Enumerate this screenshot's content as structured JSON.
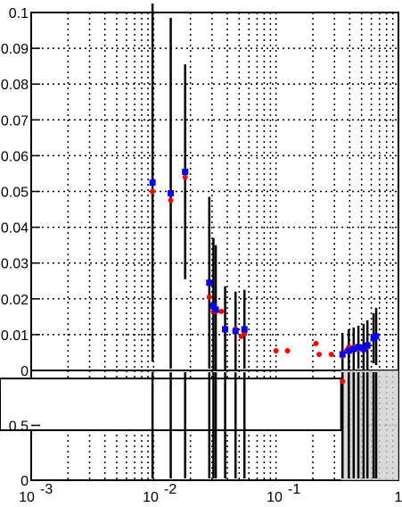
{
  "chart_data": [
    {
      "type": "scatter",
      "x_scale": "log",
      "xlim": [
        0.001,
        1
      ],
      "ylim": [
        0,
        0.1
      ],
      "grid": true,
      "x_tick_labels": [
        "10^-3",
        "10^-2",
        "10^-1",
        "1"
      ],
      "y_tick_labels": [
        "0",
        "0.01",
        "0.02",
        "0.03",
        "0.04",
        "0.05",
        "0.06",
        "0.07",
        "0.08",
        "0.09",
        "0.1"
      ],
      "series": [
        {
          "marker": "square",
          "color": "#0000ff",
          "points": [
            {
              "x": 0.0098,
              "y": 0.0525,
              "err": 0.05
            },
            {
              "x": 0.0138,
              "y": 0.0495,
              "err": 0.049
            },
            {
              "x": 0.0181,
              "y": 0.0555,
              "err": 0.03
            },
            {
              "x": 0.0285,
              "y": 0.0245,
              "err": 0.024
            },
            {
              "x": 0.0308,
              "y": 0.018,
              "err": 0.019
            },
            {
              "x": 0.0322,
              "y": 0.017,
              "err": 0.018
            },
            {
              "x": 0.0384,
              "y": 0.0115,
              "err": 0.012
            },
            {
              "x": 0.0467,
              "y": 0.011,
              "err": 0.011
            },
            {
              "x": 0.0552,
              "y": 0.0115,
              "err": 0.011
            },
            {
              "x": 0.349,
              "y": 0.0045,
              "err": 0.006
            },
            {
              "x": 0.393,
              "y": 0.0055,
              "err": 0.006
            },
            {
              "x": 0.431,
              "y": 0.006,
              "err": 0.006
            },
            {
              "x": 0.471,
              "y": 0.0065,
              "err": 0.006
            },
            {
              "x": 0.519,
              "y": 0.006,
              "err": 0.007
            },
            {
              "x": 0.558,
              "y": 0.007,
              "err": 0.007
            },
            {
              "x": 0.626,
              "y": 0.009,
              "err": 0.007
            },
            {
              "x": 0.658,
              "y": 0.0095,
              "err": 0.008
            }
          ]
        },
        {
          "marker": "circle",
          "color": "#ff0000",
          "points": [
            {
              "x": 0.0098,
              "y": 0.05
            },
            {
              "x": 0.0138,
              "y": 0.0475
            },
            {
              "x": 0.0181,
              "y": 0.054
            },
            {
              "x": 0.0285,
              "y": 0.0205
            },
            {
              "x": 0.0308,
              "y": 0.0165
            },
            {
              "x": 0.0322,
              "y": 0.0165
            },
            {
              "x": 0.0357,
              "y": 0.0165
            },
            {
              "x": 0.0384,
              "y": 0.0115
            },
            {
              "x": 0.0467,
              "y": 0.0115
            },
            {
              "x": 0.052,
              "y": 0.0095
            },
            {
              "x": 0.0552,
              "y": 0.0105
            },
            {
              "x": 0.1,
              "y": 0.0055
            },
            {
              "x": 0.124,
              "y": 0.0055
            },
            {
              "x": 0.212,
              "y": 0.0075
            },
            {
              "x": 0.225,
              "y": 0.0045
            },
            {
              "x": 0.283,
              "y": 0.0045
            },
            {
              "x": 0.349,
              "y": 0.004
            },
            {
              "x": 0.377,
              "y": 0.0055
            },
            {
              "x": 0.393,
              "y": 0.0065
            },
            {
              "x": 0.431,
              "y": 0.0065
            },
            {
              "x": 0.471,
              "y": 0.006
            },
            {
              "x": 0.558,
              "y": 0.0065
            },
            {
              "x": 0.626,
              "y": 0.0095
            }
          ]
        }
      ]
    },
    {
      "type": "scatter",
      "x_scale": "log",
      "xlim": [
        0.001,
        1
      ],
      "ylim": [
        0,
        1
      ],
      "grid": true,
      "x_tick_labels": [
        "10^-3",
        "10^-2",
        "10^-1",
        "1"
      ],
      "y_tick_labels": [
        "0",
        "0.5"
      ],
      "series": [
        {
          "marker": "circle",
          "color": "#ff0000",
          "points": [
            {
              "x": 0.349,
              "y": 0.9
            }
          ]
        }
      ]
    }
  ]
}
